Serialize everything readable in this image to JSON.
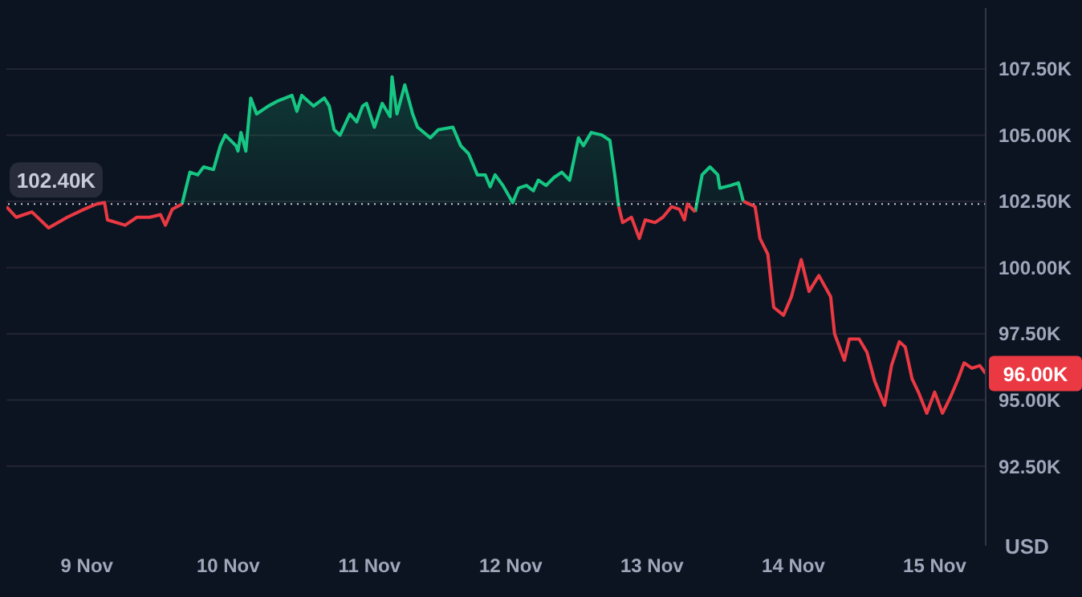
{
  "chart_data": {
    "type": "area",
    "ylabel": "USD",
    "x": [
      "--11-08T10:20",
      "--11-08T12:00",
      "--11-08T14:40",
      "--11-08T17:30",
      "--11-08T20:40",
      "--11-08T23:30",
      "--11-09T01:40",
      "--11-09T03:00",
      "--11-09T03:30",
      "--11-09T06:30",
      "--11-09T08:30",
      "--11-09T10:40",
      "--11-09T12:30",
      "--11-09T13:20",
      "--11-09T14:30",
      "--11-09T16:10",
      "--11-09T17:30",
      "--11-09T18:50",
      "--11-09T19:50",
      "--11-09T21:30",
      "--11-09T22:40",
      "--11-09T23:30",
      "--11-10T01:20",
      "--11-10T01:40",
      "--11-10T02:10",
      "--11-10T03:00",
      "--11-10T03:50",
      "--11-10T04:50",
      "--11-10T06:50",
      "--11-10T08:30",
      "--11-10T10:50",
      "--11-10T11:40",
      "--11-10T12:30",
      "--11-10T14:30",
      "--11-10T16:20",
      "--11-10T17:10",
      "--11-10T18:00",
      "--11-10T19:00",
      "--11-10T20:40",
      "--11-10T21:50",
      "--11-10T22:50",
      "--11-10T23:30",
      "--11-11T00:50",
      "--11-11T02:10",
      "--11-11T03:30",
      "--11-11T03:50",
      "--11-11T04:40",
      "--11-11T06:00",
      "--11-11T07:20",
      "--11-11T08:10",
      "--11-11T10:20",
      "--11-11T11:40",
      "--11-11T14:10",
      "--11-11T15:30",
      "--11-11T16:50",
      "--11-11T18:20",
      "--11-11T19:40",
      "--11-11T20:30",
      "--11-11T21:20",
      "--11-11T22:40",
      "--11-12T00:20",
      "--11-12T01:20",
      "--11-12T02:40",
      "--11-12T03:50",
      "--11-12T04:40",
      "--11-12T06:00",
      "--11-12T07:20",
      "--11-12T08:40",
      "--11-12T10:00",
      "--11-12T11:30",
      "--11-12T12:20",
      "--11-12T13:40",
      "--11-12T15:30",
      "--11-12T16:50",
      "--11-12T17:40",
      "--11-12T18:20",
      "--11-12T19:00",
      "--11-12T20:30",
      "--11-12T21:50",
      "--11-12T22:50",
      "--11-13T00:30",
      "--11-13T01:50",
      "--11-13T03:20",
      "--11-13T04:40",
      "--11-13T05:30",
      "--11-13T06:00",
      "--11-13T07:20",
      "--11-13T08:30",
      "--11-13T09:50",
      "--11-13T11:10",
      "--11-13T11:30",
      "--11-13T13:20",
      "--11-13T14:40",
      "--11-13T15:30",
      "--11-13T17:30",
      "--11-13T18:20",
      "--11-13T19:40",
      "--11-13T20:40",
      "--11-13T22:20",
      "--11-13T23:40",
      "--11-14T01:20",
      "--11-14T02:40",
      "--11-14T04:20",
      "--11-14T06:20",
      "--11-14T07:00",
      "--11-14T08:40",
      "--11-14T09:30",
      "--11-14T11:10",
      "--11-14T12:30",
      "--11-14T13:50",
      "--11-14T15:30",
      "--11-14T16:40",
      "--11-14T18:00",
      "--11-14T19:00",
      "--11-14T20:10",
      "--11-14T21:20",
      "--11-14T22:40",
      "--11-15T00:00",
      "--11-15T01:20",
      "--11-15T02:40",
      "--11-15T04:00",
      "--11-15T05:00",
      "--11-15T06:20",
      "--11-15T07:40",
      "--11-15T08:40"
    ],
    "series": [
      {
        "color": "#16c784",
        "values": [
          null,
          null,
          null,
          null,
          null,
          null,
          null,
          null,
          null,
          null,
          null,
          null,
          null,
          null,
          null,
          102400,
          103600,
          103500,
          103800,
          103700,
          104600,
          105000,
          104600,
          104400,
          105100,
          104400,
          106400,
          105800,
          106100,
          106300,
          106500,
          105900,
          106500,
          106100,
          106400,
          106100,
          105200,
          105000,
          105800,
          105500,
          106100,
          106200,
          105300,
          106200,
          105700,
          107200,
          105800,
          106900,
          105800,
          105300,
          104900,
          105200,
          105300,
          104600,
          104300,
          103500,
          103500,
          103050,
          103500,
          103100,
          102450,
          103000,
          103100,
          102900,
          103300,
          103100,
          103400,
          103600,
          103300,
          104900,
          104600,
          105100,
          105000,
          104800,
          103500,
          102300,
          null,
          null,
          null,
          null,
          null,
          null,
          null,
          null,
          null,
          null,
          102100,
          103500,
          103800,
          103500,
          103000,
          103100,
          103200,
          102500,
          null,
          null,
          null,
          null,
          null,
          null,
          null,
          null,
          null,
          null,
          null,
          null,
          null,
          null,
          null,
          null,
          null,
          null,
          null,
          null,
          null,
          null,
          null,
          null,
          null,
          null,
          null,
          null,
          null,
          null,
          null
        ]
      },
      {
        "type": "line",
        "color": "#ea3943",
        "values": [
          102300,
          101900,
          102100,
          101500,
          101900,
          102200,
          102400,
          102450,
          101800,
          101600,
          101900,
          101900,
          102000,
          101600,
          102200,
          102400,
          null,
          null,
          null,
          null,
          null,
          null,
          null,
          null,
          null,
          null,
          null,
          null,
          null,
          null,
          null,
          null,
          null,
          null,
          null,
          null,
          null,
          null,
          null,
          null,
          null,
          null,
          null,
          null,
          null,
          null,
          null,
          null,
          null,
          null,
          null,
          null,
          null,
          null,
          null,
          null,
          null,
          null,
          null,
          null,
          null,
          null,
          null,
          null,
          null,
          null,
          null,
          null,
          null,
          null,
          null,
          null,
          null,
          null,
          null,
          102300,
          101700,
          101900,
          101100,
          101800,
          101700,
          101900,
          102300,
          102200,
          101800,
          102400,
          102100,
          null,
          null,
          null,
          null,
          null,
          null,
          102500,
          102300,
          101100,
          100500,
          98500,
          98200,
          98900,
          100300,
          99100,
          99700,
          98900,
          97500,
          96500,
          97300,
          97300,
          96800,
          95700,
          94800,
          96300,
          97200,
          97000,
          95800,
          95250,
          94500,
          95300,
          94500,
          95100,
          95800,
          96400,
          96200,
          96300,
          96000
        ]
      }
    ],
    "xlim": [
      "--11-08T10:20",
      "--11-15T08:40"
    ],
    "xticks": [
      {
        "value": "--11-09",
        "label": "9 Nov"
      },
      {
        "value": "--11-10",
        "label": "10 Nov"
      },
      {
        "value": "--11-11",
        "label": "11 Nov"
      },
      {
        "value": "--11-12",
        "label": "12 Nov"
      },
      {
        "value": "--11-13",
        "label": "13 Nov"
      },
      {
        "value": "--11-14",
        "label": "14 Nov"
      },
      {
        "value": "--11-15",
        "label": "15 Nov"
      }
    ],
    "ylim": [
      89500,
      109800
    ],
    "yticks": [
      {
        "value": 92500,
        "label": "92.50K"
      },
      {
        "value": 95000,
        "label": "95.00K"
      },
      {
        "value": 97500,
        "label": "97.50K"
      },
      {
        "value": 100000,
        "label": "100.00K"
      },
      {
        "value": 102500,
        "label": "102.50K"
      },
      {
        "value": 105000,
        "label": "105.00K"
      },
      {
        "value": 107500,
        "label": "107.50K"
      }
    ],
    "grid": "y",
    "ref_lines": [
      {
        "axis": "y",
        "value": 102400,
        "label": "102.40K",
        "color": "#c8ccd8",
        "line_style": "dotted"
      }
    ],
    "annotations": [
      {
        "text": "96.00K",
        "x": "--11-15T08:40",
        "y": 96000
      }
    ]
  }
}
